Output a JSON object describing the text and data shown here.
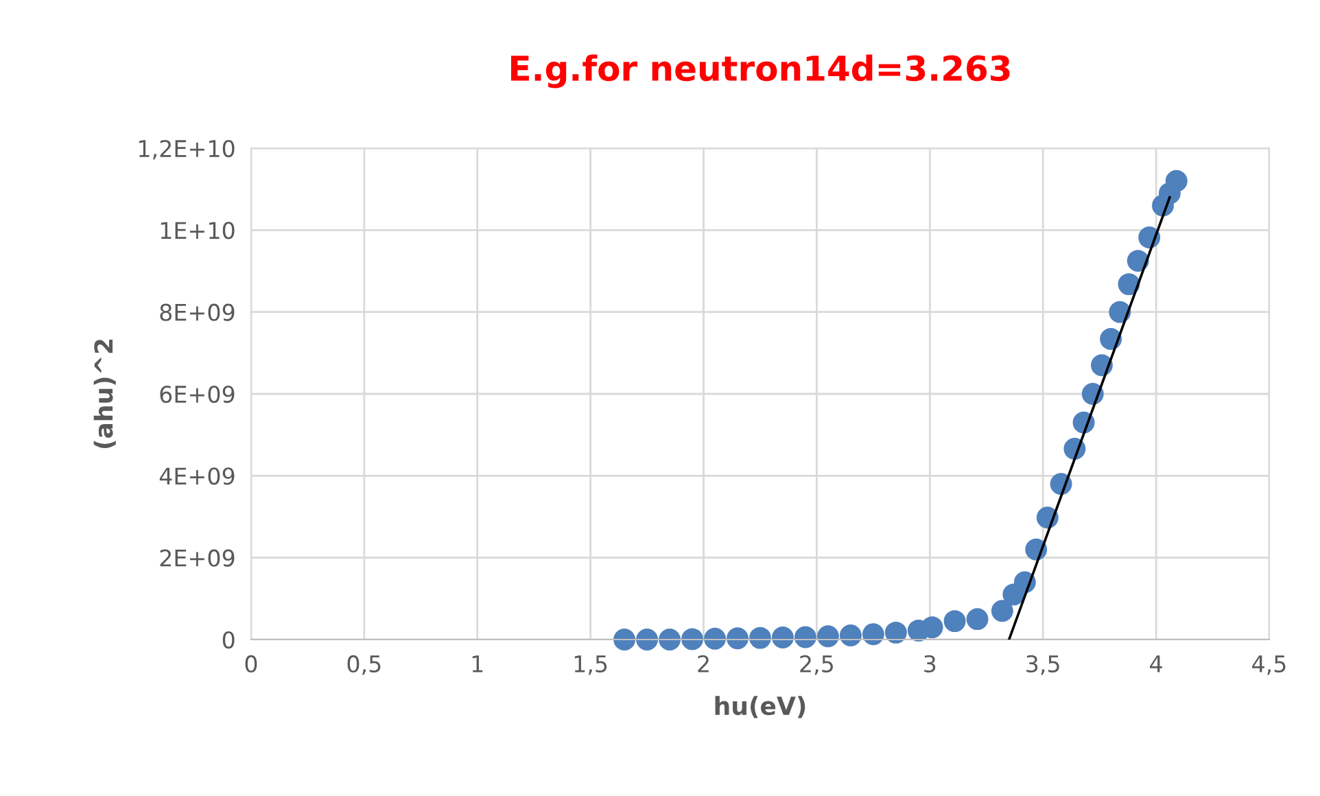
{
  "chart_data": {
    "type": "scatter",
    "title": "E.g.for neutron14d=3.263",
    "xlabel": "hu(eV)",
    "ylabel": "(ahu)^2",
    "series": [
      {
        "color": "#4f81bd",
        "marker": "circle",
        "x": [
          1.65,
          1.75,
          1.85,
          1.95,
          2.05,
          2.15,
          2.25,
          2.35,
          2.45,
          2.55,
          2.65,
          2.75,
          2.85,
          2.95,
          3.01,
          3.11,
          3.21,
          3.32,
          3.37,
          3.42,
          3.47,
          3.52,
          3.58,
          3.64,
          3.68,
          3.72,
          3.76,
          3.8,
          3.84,
          3.88,
          3.92,
          3.97,
          4.03,
          4.06,
          4.09
        ],
        "values": [
          0,
          0,
          0,
          10000000,
          20000000,
          30000000,
          40000000,
          50000000,
          60000000,
          80000000,
          100000000,
          130000000,
          170000000,
          220000000,
          300000000,
          450000000,
          500000000,
          700000000,
          1100000000,
          1400000000,
          2200000000,
          2980000000,
          3800000000,
          4660000000,
          5300000000,
          6000000000,
          6700000000,
          7340000000,
          8000000000,
          8680000000,
          9250000000,
          9820000000,
          10600000000,
          10900000000,
          11200000000
        ]
      },
      {
        "type": "line",
        "color": "#000000",
        "marker": "none",
        "line_style": "solid",
        "x": [
          3.35,
          4.06
        ],
        "values": [
          0,
          10800000000
        ]
      }
    ],
    "xlim": [
      0,
      4.5
    ],
    "xticks": [
      0,
      {
        "value": 0.5,
        "label": "0,5"
      },
      1,
      {
        "value": 1.5,
        "label": "1,5"
      },
      2,
      {
        "value": 2.5,
        "label": "2,5"
      },
      3,
      {
        "value": 3.5,
        "label": "3,5"
      },
      4,
      {
        "value": 4.5,
        "label": "4,5"
      }
    ],
    "ylim": [
      0,
      12000000000
    ],
    "yticks": [
      0,
      {
        "value": 2000000000,
        "label": "2E+09"
      },
      {
        "value": 4000000000,
        "label": "4E+09"
      },
      {
        "value": 6000000000,
        "label": "6E+09"
      },
      {
        "value": 8000000000,
        "label": "8E+09"
      },
      {
        "value": 10000000000,
        "label": "1E+10"
      },
      {
        "value": 12000000000,
        "label": "1,2E+10"
      }
    ],
    "grid": true,
    "legend": false
  }
}
